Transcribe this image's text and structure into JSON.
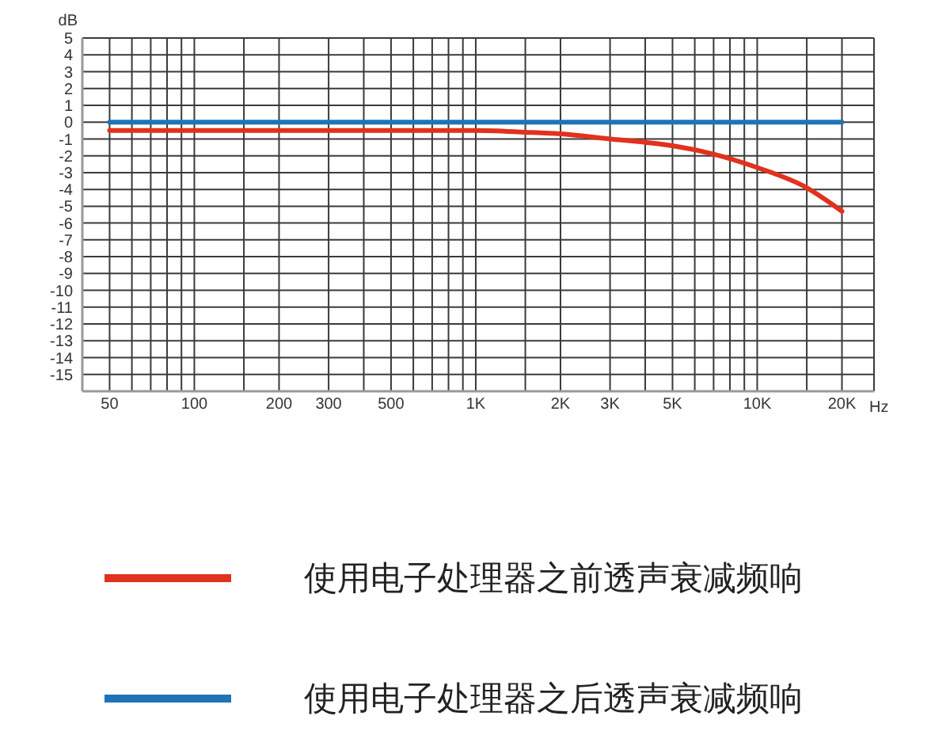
{
  "chart_data": {
    "type": "line",
    "xlabel": "Hz",
    "ylabel": "dB",
    "x": [
      50,
      100,
      200,
      500,
      700,
      1000,
      1500,
      2000,
      3000,
      4000,
      5000,
      7000,
      10000,
      15000,
      20000
    ],
    "series": [
      {
        "name": "使用电子处理器之前透声衰减频响",
        "color": "#e2311d",
        "values": [
          -0.5,
          -0.5,
          -0.5,
          -0.5,
          -0.5,
          -0.5,
          -0.6,
          -0.7,
          -1.0,
          -1.2,
          -1.4,
          -1.9,
          -2.7,
          -3.9,
          -5.3
        ]
      },
      {
        "name": "使用电子处理器之后透声衰减频响",
        "color": "#1f74b8",
        "values": [
          0,
          0,
          0,
          0,
          0,
          0,
          0,
          0,
          0,
          0,
          0,
          0,
          0,
          0,
          0
        ]
      }
    ],
    "xlim": [
      40,
      26000
    ],
    "ylim": [
      -16,
      5
    ],
    "xticks": [
      50,
      {
        "value": 60,
        "label": null
      },
      {
        "value": 70,
        "label": null
      },
      {
        "value": 80,
        "label": null
      },
      {
        "value": 90,
        "label": null
      },
      100,
      {
        "value": 150,
        "label": null
      },
      200,
      300,
      {
        "value": 400,
        "label": null
      },
      500,
      {
        "value": 600,
        "label": null
      },
      {
        "value": 700,
        "label": null
      },
      {
        "value": 800,
        "label": null
      },
      {
        "value": 900,
        "label": null
      },
      {
        "value": 1000,
        "label": "1K"
      },
      {
        "value": 1500,
        "label": null
      },
      {
        "value": 2000,
        "label": "2K"
      },
      {
        "value": 3000,
        "label": "3K"
      },
      {
        "value": 4000,
        "label": null
      },
      {
        "value": 5000,
        "label": "5K"
      },
      {
        "value": 6000,
        "label": null
      },
      {
        "value": 7000,
        "label": null
      },
      {
        "value": 8000,
        "label": null
      },
      {
        "value": 9000,
        "label": null
      },
      {
        "value": 10000,
        "label": "10K"
      },
      {
        "value": 15000,
        "label": null
      },
      {
        "value": 20000,
        "label": "20K"
      }
    ],
    "yticks": [
      -15,
      -14,
      -13,
      -12,
      -11,
      -10,
      -9,
      -8,
      -7,
      -6,
      -5,
      -4,
      -3,
      -2,
      -1,
      0,
      1,
      2,
      3,
      4,
      5
    ],
    "log": "x",
    "grid": true,
    "legend": "bottom",
    "line_style": "solid"
  }
}
